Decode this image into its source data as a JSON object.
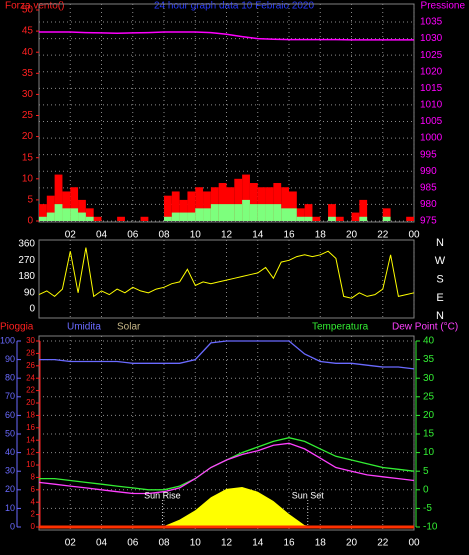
{
  "chart_data": [
    {
      "type": "bar",
      "title": "24 hour graph data 10 Febraio 2020",
      "ylabel": "Forza vento()",
      "y2label": "Pressione",
      "x": [
        0,
        0.5,
        1,
        1.5,
        2,
        2.5,
        3,
        3.5,
        4,
        4.5,
        5,
        5.5,
        6,
        6.5,
        7,
        7.5,
        8,
        8.5,
        9,
        9.5,
        10,
        10.5,
        11,
        11.5,
        12,
        12.5,
        13,
        13.5,
        14,
        14.5,
        15,
        15.5,
        16,
        16.5,
        17,
        17.5,
        18,
        18.5,
        19,
        19.5,
        20,
        20.5,
        21,
        21.5,
        22,
        22.5,
        23,
        23.5
      ],
      "xlim": [
        0,
        24
      ],
      "xticks": [
        {
          "value": 2,
          "label": "02"
        },
        {
          "value": 4,
          "label": "04"
        },
        {
          "value": 6,
          "label": "06"
        },
        {
          "value": 8,
          "label": "08"
        },
        10,
        12,
        14,
        16,
        18,
        20,
        22,
        {
          "value": 24,
          "label": "00"
        }
      ],
      "ylim": [
        0,
        50
      ],
      "yticks": [
        0,
        5,
        10,
        15,
        20,
        25,
        30,
        35,
        40,
        45,
        50
      ],
      "y2lim": [
        975,
        1035
      ],
      "y2ticks": [
        975,
        980,
        985,
        990,
        995,
        1000,
        1005,
        1010,
        1015,
        1020,
        1025,
        1030,
        1035
      ],
      "grid": true,
      "series": [
        {
          "color": "#ff0000",
          "values": [
            4,
            6,
            11,
            7,
            8,
            5,
            3,
            1,
            0,
            0,
            1,
            0,
            0,
            1,
            0,
            0,
            6,
            7,
            5,
            7,
            8,
            7,
            8,
            9,
            8,
            10,
            11,
            9,
            8,
            8,
            9,
            8,
            7,
            3,
            4,
            1,
            0,
            4,
            1,
            0,
            2,
            5,
            0,
            0,
            3,
            0,
            0,
            1
          ]
        },
        {
          "color": "#7dff7d",
          "values": [
            1,
            2,
            4,
            3,
            3,
            2,
            1,
            0,
            0,
            0,
            0,
            0,
            0,
            0,
            0,
            0,
            1,
            2,
            2,
            2,
            3,
            3,
            4,
            4,
            4,
            4,
            5,
            4,
            4,
            4,
            4,
            3,
            3,
            1,
            1,
            0,
            0,
            1,
            0,
            0,
            0,
            1,
            0,
            0,
            1,
            0,
            0,
            0
          ]
        },
        {
          "type": "line",
          "axis": "y2",
          "color": "#ff00ff",
          "x": [
            0,
            1,
            2,
            3,
            4,
            5,
            6,
            7,
            8,
            9,
            10,
            11,
            12,
            13,
            14,
            15,
            16,
            17,
            18,
            19,
            20,
            21,
            22,
            23,
            24
          ],
          "values": [
            1032,
            1032,
            1032,
            1031.8,
            1031.7,
            1031.6,
            1031.7,
            1031.8,
            1032,
            1032,
            1032,
            1031.8,
            1031.3,
            1030.6,
            1030,
            1029.8,
            1029.7,
            1029.7,
            1029.7,
            1029.7,
            1029.6,
            1029.6,
            1029.6,
            1029.6,
            1029.6
          ]
        }
      ]
    },
    {
      "type": "line",
      "color": "#ffff00",
      "xlim": [
        0,
        24
      ],
      "ylim": [
        0,
        360
      ],
      "yticks": [
        0,
        90,
        180,
        270,
        360
      ],
      "y2labels": [
        "N",
        "W",
        "S",
        "E",
        "N"
      ],
      "x": [
        0,
        0.5,
        1,
        1.5,
        2,
        2.5,
        3,
        3.5,
        4,
        4.5,
        5,
        5.5,
        6,
        6.5,
        7,
        7.5,
        8,
        8.5,
        9,
        9.5,
        10,
        10.5,
        11,
        11.5,
        12,
        12.5,
        13,
        13.5,
        14,
        14.5,
        15,
        15.5,
        16,
        16.5,
        17,
        17.5,
        18,
        18.5,
        19,
        19.5,
        20,
        20.5,
        21,
        21.5,
        22,
        22.5,
        23,
        23.5,
        24
      ],
      "values": [
        80,
        100,
        70,
        110,
        320,
        90,
        340,
        70,
        100,
        80,
        110,
        90,
        120,
        100,
        90,
        110,
        120,
        140,
        150,
        220,
        130,
        150,
        140,
        150,
        160,
        170,
        180,
        190,
        200,
        230,
        170,
        260,
        270,
        290,
        300,
        290,
        300,
        320,
        280,
        70,
        60,
        90,
        70,
        80,
        110,
        300,
        70,
        80,
        90
      ]
    },
    {
      "type": "line",
      "x": [
        0,
        1,
        2,
        3,
        4,
        5,
        6,
        7,
        8,
        9,
        10,
        11,
        12,
        13,
        14,
        15,
        16,
        17,
        18,
        19,
        20,
        21,
        22,
        23,
        24
      ],
      "xlim": [
        0,
        24
      ],
      "xticks": [
        {
          "value": 2,
          "label": "02"
        },
        {
          "value": 4,
          "label": "04"
        },
        {
          "value": 6,
          "label": "06"
        },
        {
          "value": 8,
          "label": "08"
        },
        10,
        12,
        14,
        16,
        18,
        20,
        22,
        {
          "value": 24,
          "label": "00"
        }
      ],
      "ylim": [
        0,
        100
      ],
      "yticks": [
        0,
        10,
        20,
        30,
        40,
        50,
        60,
        70,
        80,
        90,
        100
      ],
      "rain_ylim": [
        0,
        30
      ],
      "rain_yticks": [
        0,
        2,
        4,
        6,
        8,
        10,
        12,
        14,
        16,
        18,
        20,
        22,
        24,
        26,
        28,
        30
      ],
      "y2lim": [
        -10,
        40
      ],
      "y2ticks": [
        -10,
        -5,
        0,
        5,
        10,
        15,
        20,
        25,
        30,
        35,
        40
      ],
      "grid": true,
      "series": [
        {
          "name": "Solar",
          "type": "area",
          "axis": "solar",
          "ylim": [
            0,
            1000
          ],
          "color": "#ffff00",
          "values": [
            0,
            0,
            0,
            0,
            0,
            0,
            0,
            0,
            5,
            40,
            90,
            160,
            205,
            215,
            190,
            140,
            70,
            10,
            0,
            0,
            0,
            0,
            0,
            0,
            0
          ]
        },
        {
          "name": "Pioggia",
          "axis": "rain",
          "color": "#ff3000",
          "values": [
            0,
            0,
            0,
            0,
            0,
            0,
            0,
            0,
            0,
            0,
            0,
            0,
            0,
            0,
            0,
            0,
            0,
            0,
            0,
            0,
            0,
            0,
            0,
            0,
            0
          ]
        },
        {
          "name": "Umidita",
          "axis": "y",
          "color": "#6a6aff",
          "values": [
            90,
            90,
            89,
            89,
            89,
            89,
            88,
            88,
            88,
            88,
            90,
            99,
            100,
            100,
            100,
            100,
            100,
            93,
            89,
            88,
            88,
            87,
            86,
            86,
            85
          ]
        },
        {
          "name": "Temperatura",
          "axis": "y2",
          "color": "#33ee33",
          "values": [
            3,
            3,
            2.5,
            2,
            1.5,
            1,
            0.5,
            0,
            0,
            1,
            3,
            6,
            8,
            10,
            11.5,
            13,
            14,
            13,
            11,
            9,
            8,
            7,
            6,
            5.5,
            5
          ]
        },
        {
          "name": "Dew Point (°C)",
          "axis": "y2",
          "color": "#ff40ff",
          "values": [
            2,
            1.5,
            1,
            0.5,
            0,
            -0.5,
            -1,
            -1,
            -0.5,
            0.5,
            3,
            6,
            8,
            9.5,
            10.5,
            12,
            12.5,
            11,
            8.5,
            6,
            5,
            4,
            3.5,
            3,
            2.5
          ]
        }
      ],
      "annotations": [
        {
          "text": "Sun Rise",
          "x": 7.9
        },
        {
          "text": "Sun Set",
          "x": 17.2
        }
      ]
    }
  ]
}
